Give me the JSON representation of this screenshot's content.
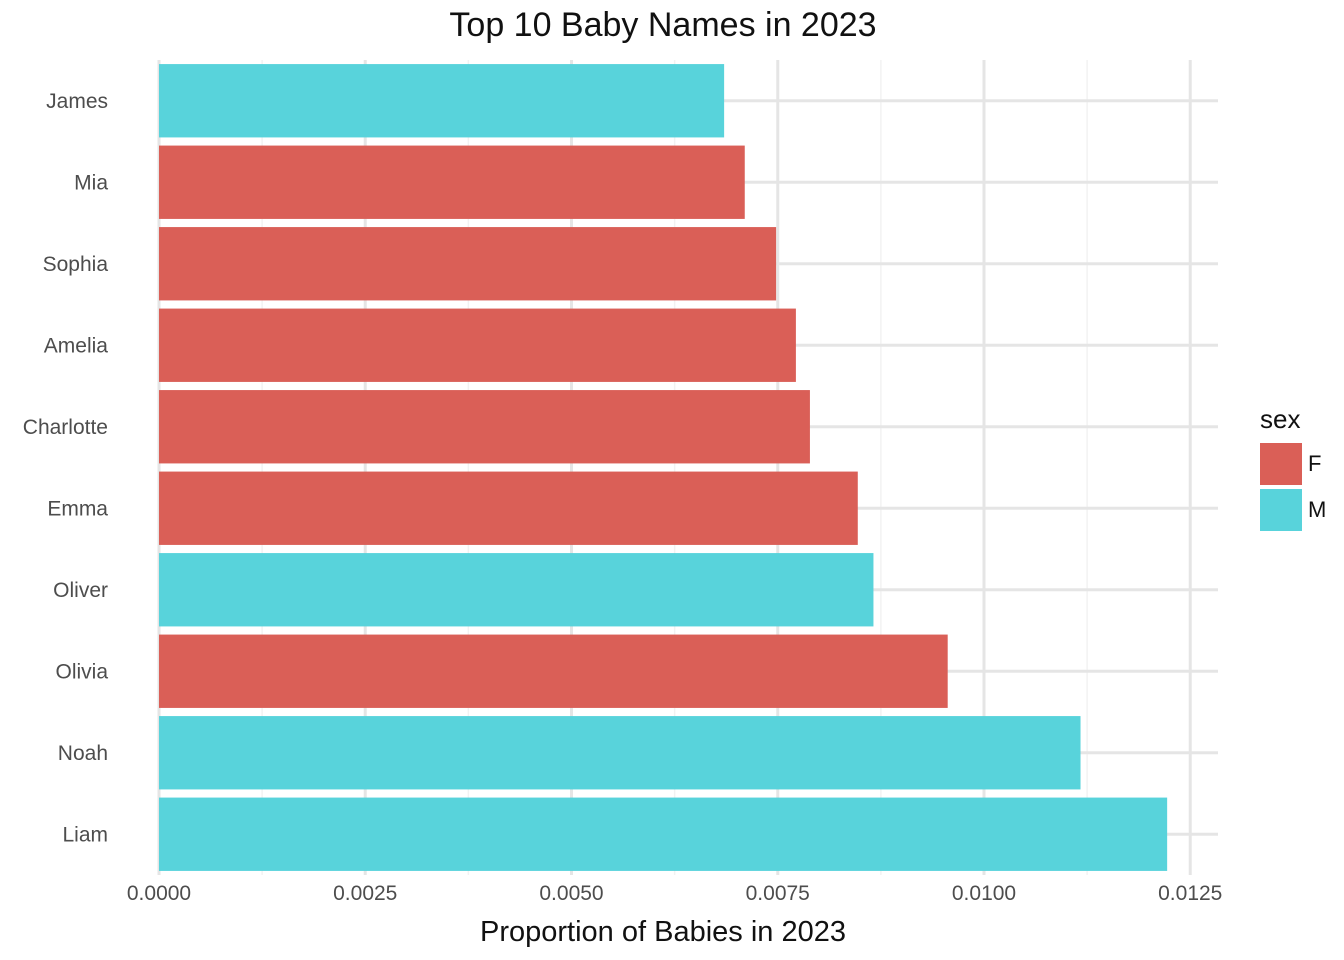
{
  "chart_data": {
    "type": "bar",
    "orientation": "horizontal",
    "title": "Top 10 Baby Names in 2023",
    "xlabel": "Proportion of Babies in 2023",
    "ylabel": "",
    "xlim": [
      0,
      0.0129
    ],
    "x_ticks": [
      "0.0000",
      "0.0025",
      "0.0050",
      "0.0075",
      "0.0100",
      "0.0125"
    ],
    "x_tick_values": [
      0,
      0.0025,
      0.005,
      0.0075,
      0.01,
      0.0125
    ],
    "grid": true,
    "categories": [
      "Liam",
      "Noah",
      "Olivia",
      "Oliver",
      "Emma",
      "Charlotte",
      "Amelia",
      "Sophia",
      "Mia",
      "James"
    ],
    "values": [
      0.01222,
      0.01117,
      0.00956,
      0.00866,
      0.00847,
      0.00789,
      0.00772,
      0.00748,
      0.0071,
      0.00685
    ],
    "sex": [
      "M",
      "M",
      "F",
      "M",
      "F",
      "F",
      "F",
      "F",
      "F",
      "M"
    ],
    "legend": {
      "title": "sex",
      "position": "right",
      "entries": [
        {
          "label": "F",
          "color": "#da5f57"
        },
        {
          "label": "M",
          "color": "#58d3db"
        }
      ]
    }
  }
}
